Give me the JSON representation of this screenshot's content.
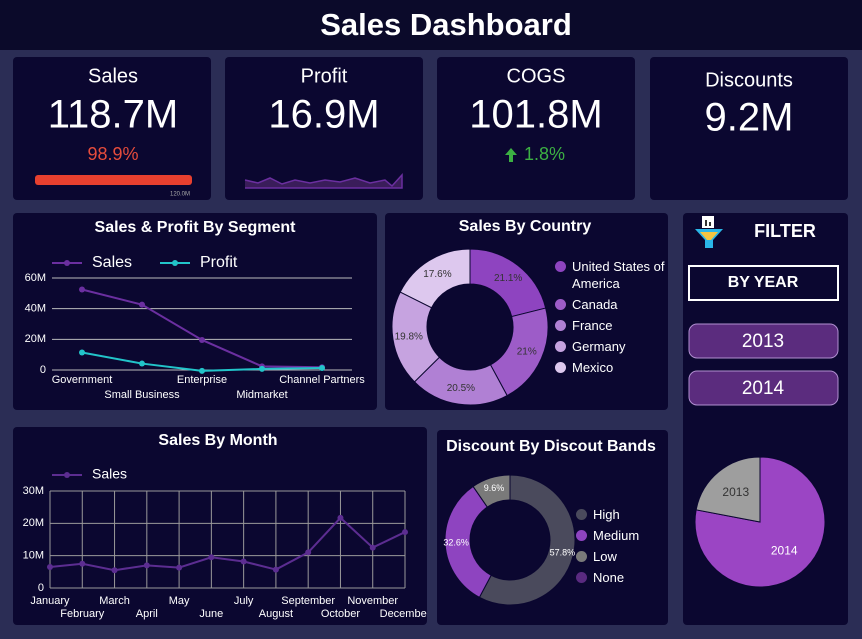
{
  "title": "Sales Dashboard",
  "kpis": [
    {
      "label": "Sales",
      "value": "118.7M",
      "delta": "98.9%",
      "gauge_max": "120.0M"
    },
    {
      "label": "Profit",
      "value": "16.9M"
    },
    {
      "label": "COGS",
      "value": "101.8M",
      "delta": "1.8%"
    },
    {
      "label": "Discounts",
      "value": "9.2M"
    }
  ],
  "filter": {
    "title": "FILTER",
    "group": "BY YEAR",
    "options": [
      "2013",
      "2014"
    ]
  },
  "chart_data": [
    {
      "type": "line",
      "title": "Sales & Profit By Segment",
      "categories": [
        "Government",
        "Small Business",
        "Enterprise",
        "Midmarket",
        "Channel Partners"
      ],
      "series": [
        {
          "name": "Sales",
          "color": "#6b2fa0",
          "values": [
            52.5,
            42.6,
            19.6,
            2.4,
            1.8
          ]
        },
        {
          "name": "Profit",
          "color": "#22c4c9",
          "values": [
            11.4,
            4.2,
            -0.6,
            0.7,
            1.3
          ]
        }
      ],
      "ylim": [
        0,
        60
      ],
      "yticks": [
        0,
        {
          "value": 20,
          "label": "20M"
        },
        {
          "value": 40,
          "label": "40M"
        },
        {
          "value": 60,
          "label": "60M"
        }
      ],
      "grid": true
    },
    {
      "type": "donut",
      "title": "Sales By Country",
      "categories": [
        "United States of America",
        "Canada",
        "France",
        "Germany",
        "Mexico"
      ],
      "values": [
        21.1,
        21,
        20.5,
        19.8,
        17.6
      ],
      "value_labels": [
        "21.1%",
        "21%",
        "20.5%",
        "19.8%",
        "17.6%"
      ],
      "colors": [
        "#8e44c0",
        "#9d5cc8",
        "#b080d4",
        "#c6a3e0",
        "#ddc8ee"
      ]
    },
    {
      "type": "line",
      "title": "Sales By Month",
      "categories": [
        "January",
        "February",
        "March",
        "April",
        "May",
        "June",
        "July",
        "August",
        "September",
        "October",
        "November",
        "December"
      ],
      "series": [
        {
          "name": "Sales",
          "color": "#5c2d91",
          "values": [
            6.5,
            7.5,
            5.5,
            7,
            6.3,
            9.5,
            8.2,
            5.7,
            11,
            21.7,
            12.5,
            17.3
          ]
        }
      ],
      "ylim": [
        0,
        30
      ],
      "yticks": [
        0,
        {
          "value": 10,
          "label": "10M"
        },
        {
          "value": 20,
          "label": "20M"
        },
        {
          "value": 30,
          "label": "30M"
        }
      ],
      "grid": true
    },
    {
      "type": "donut",
      "title": "Discount By Discout Bands",
      "categories": [
        "High",
        "Medium",
        "Low",
        "None"
      ],
      "values": [
        57.8,
        32.6,
        9.6,
        0
      ],
      "value_labels": [
        "57.8%",
        "32.6%",
        "9.6%",
        null
      ],
      "colors": [
        "#4a4a5c",
        "#8e44c0",
        "#7a7a7a",
        "#5a2a80"
      ]
    },
    {
      "type": "pie",
      "categories": [
        "2014",
        "2013"
      ],
      "values": [
        78,
        22
      ],
      "colors": [
        "#9b45c4",
        "#9e9e9e"
      ]
    }
  ]
}
